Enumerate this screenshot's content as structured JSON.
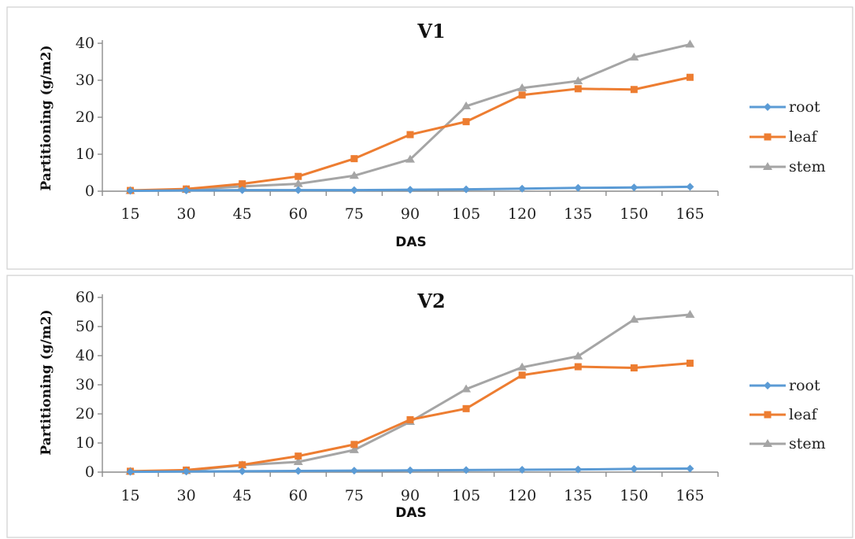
{
  "chart_data": [
    {
      "type": "line",
      "title": "V1",
      "xlabel": "DAS",
      "ylabel": "Partitioning (g/m2)",
      "ylim": [
        0,
        40
      ],
      "yticks": [
        "0",
        "10",
        "20",
        "30",
        "40"
      ],
      "categories": [
        "15",
        "30",
        "45",
        "60",
        "75",
        "90",
        "105",
        "120",
        "135",
        "150",
        "165"
      ],
      "legend_position": "right",
      "series": [
        {
          "name": "root",
          "color": "#5b9bd5",
          "marker": "diamond",
          "values": [
            0.1,
            0.2,
            0.3,
            0.3,
            0.3,
            0.4,
            0.5,
            0.7,
            0.9,
            1.0,
            1.2
          ]
        },
        {
          "name": "leaf",
          "color": "#ed7d31",
          "marker": "square",
          "values": [
            0.2,
            0.6,
            2.0,
            4.0,
            8.8,
            15.3,
            18.8,
            26.0,
            27.7,
            27.5,
            30.8
          ]
        },
        {
          "name": "stem",
          "color": "#a5a5a5",
          "marker": "triangle",
          "values": [
            0.1,
            0.4,
            1.3,
            2.0,
            4.2,
            8.6,
            23.0,
            27.9,
            29.8,
            36.2,
            39.7
          ]
        }
      ]
    },
    {
      "type": "line",
      "title": "V2",
      "xlabel": "DAS",
      "ylabel": "Partitioning (g/m2)",
      "ylim": [
        0,
        60
      ],
      "yticks": [
        "0",
        "10",
        "20",
        "30",
        "40",
        "50",
        "60"
      ],
      "categories": [
        "15",
        "30",
        "45",
        "60",
        "75",
        "90",
        "105",
        "120",
        "135",
        "150",
        "165"
      ],
      "legend_position": "right",
      "series": [
        {
          "name": "root",
          "color": "#5b9bd5",
          "marker": "diamond",
          "values": [
            0.1,
            0.2,
            0.3,
            0.4,
            0.5,
            0.6,
            0.7,
            0.8,
            0.9,
            1.1,
            1.2
          ]
        },
        {
          "name": "leaf",
          "color": "#ed7d31",
          "marker": "square",
          "values": [
            0.3,
            0.7,
            2.5,
            5.5,
            9.5,
            18.0,
            21.8,
            33.3,
            36.2,
            35.8,
            37.4
          ]
        },
        {
          "name": "stem",
          "color": "#a5a5a5",
          "marker": "triangle",
          "values": [
            0.2,
            0.4,
            2.4,
            3.5,
            7.6,
            17.3,
            28.5,
            36.0,
            39.8,
            52.4,
            54.1
          ]
        }
      ]
    }
  ]
}
